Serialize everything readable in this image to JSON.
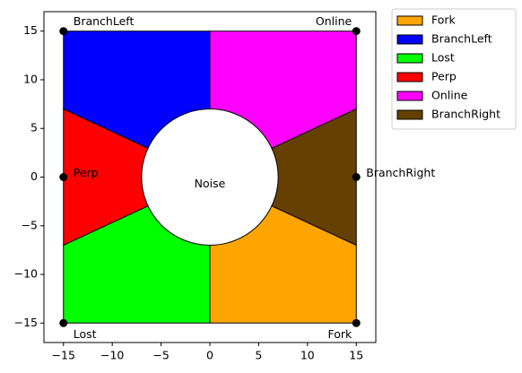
{
  "chart_data": {
    "type": "polygon",
    "xlim": [
      -17,
      17
    ],
    "ylim": [
      -17,
      17
    ],
    "xticks": [
      {
        "value": -15,
        "label": "−15"
      },
      {
        "value": -10,
        "label": "−10"
      },
      {
        "value": -5,
        "label": "−5"
      },
      0,
      5,
      10,
      15
    ],
    "yticks": [
      {
        "value": -15,
        "label": "−15"
      },
      {
        "value": -10,
        "label": "−10"
      },
      {
        "value": -5,
        "label": "−5"
      },
      0,
      5,
      10,
      15
    ],
    "series": [
      {
        "name": "Fork",
        "color": "#ffa500",
        "x": [
          0,
          0,
          15,
          15
        ],
        "y": [
          0,
          -15,
          -15,
          -7
        ]
      },
      {
        "name": "BranchLeft",
        "color": "#0000ff",
        "x": [
          0,
          -15,
          -15,
          0
        ],
        "y": [
          0,
          7,
          15,
          15
        ]
      },
      {
        "name": "Lost",
        "color": "#00ff00",
        "x": [
          0,
          0,
          -15,
          -15
        ],
        "y": [
          0,
          -15,
          -15,
          -7
        ]
      },
      {
        "name": "Perp",
        "color": "#ff0000",
        "x": [
          0,
          -15,
          -15
        ],
        "y": [
          0,
          7,
          -7
        ]
      },
      {
        "name": "Online",
        "color": "#ff00ff",
        "x": [
          0,
          0,
          15,
          15
        ],
        "y": [
          0,
          15,
          15,
          7
        ]
      },
      {
        "name": "BranchRight",
        "color": "#654000",
        "x": [
          0,
          15,
          15
        ],
        "y": [
          0,
          7,
          -7
        ]
      }
    ],
    "circle": {
      "label": "Noise",
      "center": [
        0,
        0
      ],
      "radius": 7
    },
    "points": {
      "x": [
        -15,
        15,
        -15,
        15,
        -15,
        15
      ],
      "y": [
        15,
        15,
        0,
        0,
        -15,
        -15
      ],
      "labels": [
        "BranchLeft",
        "Online",
        "Perp",
        "BranchRight",
        "Lost",
        "Fork"
      ]
    },
    "legend": "outside upper right"
  }
}
